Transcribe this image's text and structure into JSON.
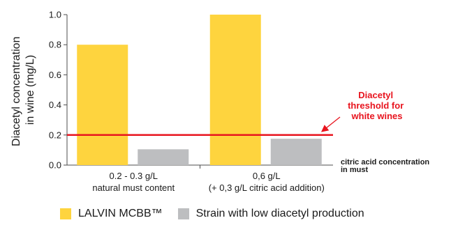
{
  "colors": {
    "series_a": "#fed43e",
    "series_b": "#bdbec0",
    "threshold": "#e8141e",
    "axis": "#4d4d4d"
  },
  "chart_data": {
    "type": "bar",
    "ylabel": [
      "Diacetyl concentration",
      "in wine (mg/L)"
    ],
    "ylim": [
      0,
      1.0
    ],
    "yticks": [
      "0.0",
      "0.2",
      "0.4",
      "0.6",
      "0.8",
      "1.0"
    ],
    "grid": false,
    "categories": [
      [
        "0.2 - 0.3 g/L",
        "natural must content"
      ],
      [
        "0,6 g/L",
        "(+ 0,3 g/L citric acid addition)"
      ]
    ],
    "series": [
      {
        "name": "LALVIN MCBB™",
        "values": [
          0.8,
          1.0
        ]
      },
      {
        "name": "Strain with low diacetyl production",
        "values": [
          0.105,
          0.175
        ]
      }
    ],
    "x_axis_note": [
      "citric acid concentration",
      "in must"
    ],
    "threshold": {
      "value": 0.2,
      "label": [
        "Diacetyl",
        "threshold for",
        "white wines"
      ]
    },
    "legend_position": "bottom"
  }
}
